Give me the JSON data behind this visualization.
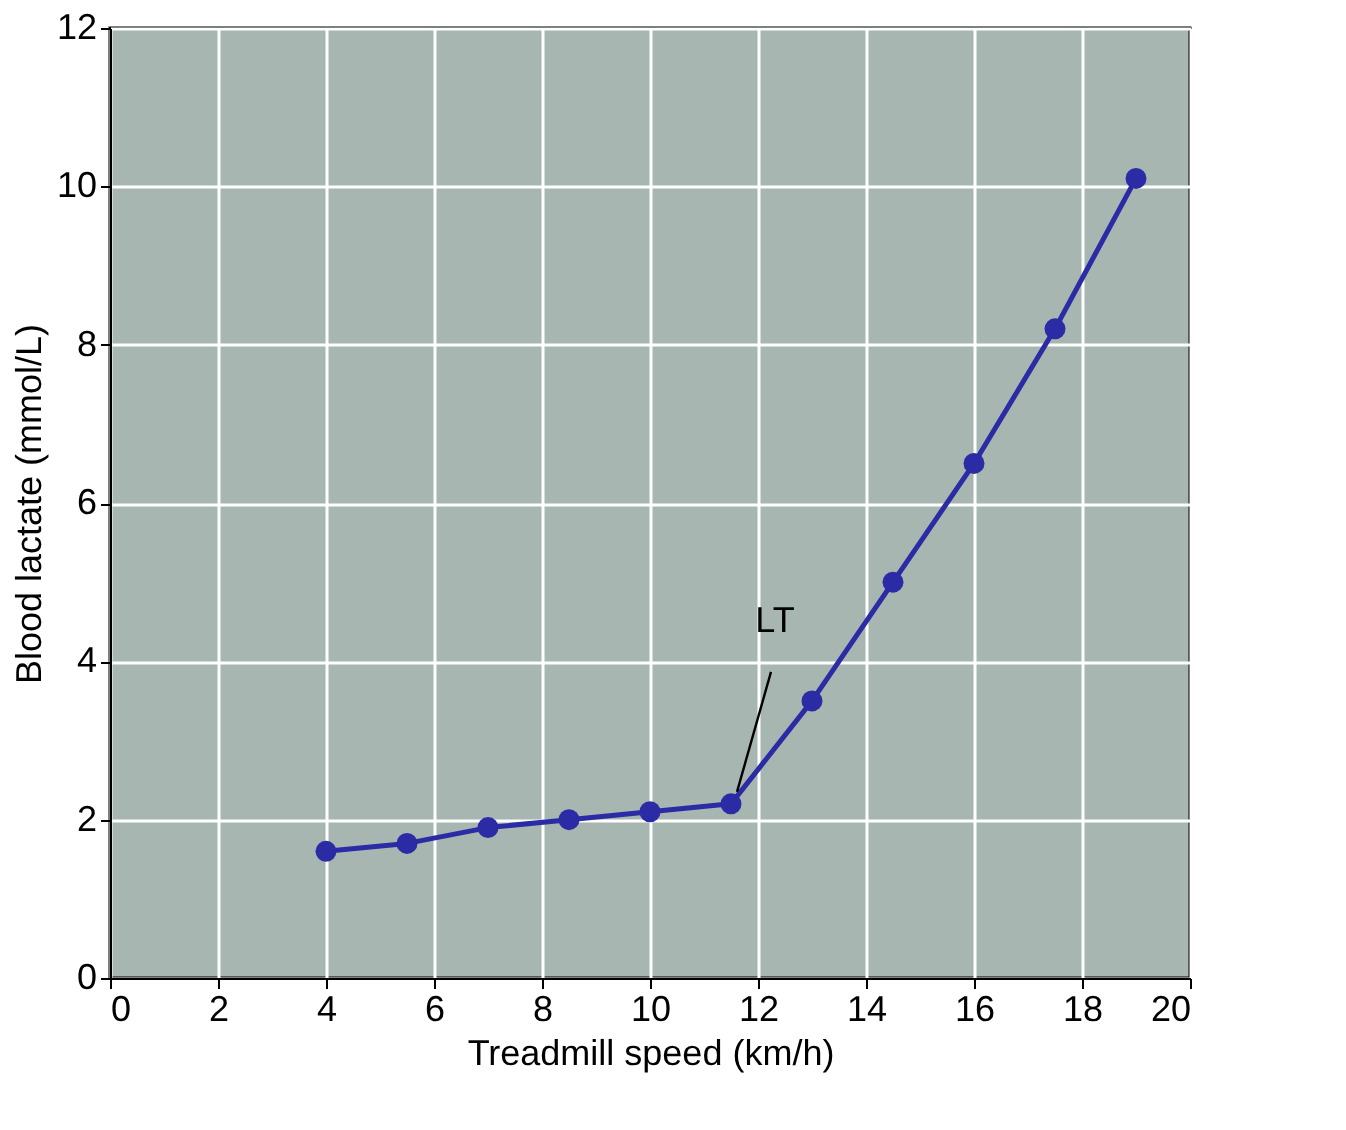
{
  "chart_data": {
    "type": "line",
    "xlabel": "Treadmill speed (km/h)",
    "ylabel": "Blood lactate (mmol/L)",
    "x": [
      4,
      5.5,
      7,
      8.5,
      10,
      11.5,
      13,
      14.5,
      16,
      17.5,
      19
    ],
    "series": [
      {
        "color": "#2b2ba6",
        "values": [
          1.6,
          1.7,
          1.9,
          2.0,
          2.1,
          2.2,
          3.5,
          5.0,
          6.5,
          8.2,
          10.1
        ]
      }
    ],
    "xlim": [
      0,
      20
    ],
    "xticks": [
      0,
      2,
      4,
      6,
      8,
      10,
      12,
      14,
      16,
      18,
      20
    ],
    "ylim": [
      0,
      12
    ],
    "yticks": [
      0,
      2,
      4,
      6,
      8,
      10,
      12
    ],
    "grid": true,
    "marker": "circle",
    "line_style": "solid",
    "annotations": [
      {
        "text": "LT",
        "x": 11.5,
        "y": 2.2
      }
    ]
  }
}
